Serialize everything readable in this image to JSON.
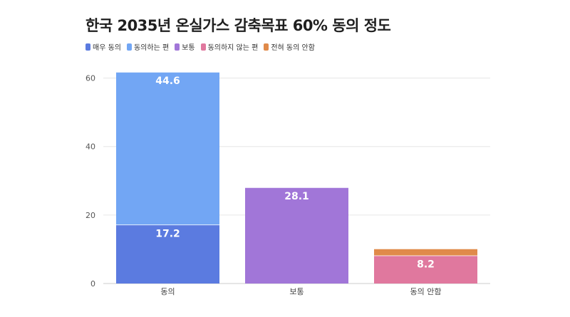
{
  "chart_data": {
    "type": "bar",
    "stacked": true,
    "title": "한국 2035년 온실가스 감축목표 60% 동의 정도",
    "categories": [
      "동의",
      "보통",
      "동의 안함"
    ],
    "series": [
      {
        "name": "매우 동의",
        "color": "#5b7be0",
        "values": [
          17.2,
          0,
          0
        ],
        "labels": [
          "17.2",
          "",
          ""
        ]
      },
      {
        "name": "동의하는 편",
        "color": "#72a6f4",
        "values": [
          44.6,
          0,
          0
        ],
        "labels": [
          "44.6",
          "",
          ""
        ]
      },
      {
        "name": "보통",
        "color": "#a176d8",
        "values": [
          0,
          28.1,
          0
        ],
        "labels": [
          "",
          "28.1",
          ""
        ]
      },
      {
        "name": "동의하지 않는 편",
        "color": "#e0789e",
        "values": [
          0,
          0,
          8.2
        ],
        "labels": [
          "",
          "",
          "8.2"
        ]
      },
      {
        "name": "전혀 동의 안함",
        "color": "#e08a4a",
        "values": [
          0,
          0,
          2.0
        ],
        "labels": [
          "",
          "",
          ""
        ]
      }
    ],
    "yticks": [
      0,
      20,
      40,
      60
    ],
    "ylim": [
      0,
      62
    ],
    "grid": true,
    "legend_position": "top-left"
  }
}
